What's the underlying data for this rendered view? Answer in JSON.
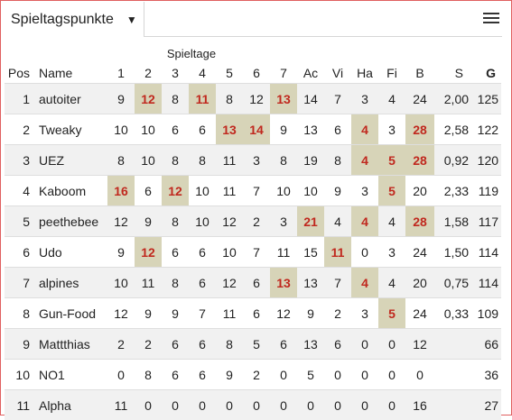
{
  "header": {
    "select_value": "Spieltagspunkte",
    "caret_icon": "caret-down-icon",
    "menu_icon": "hamburger-menu-icon"
  },
  "table": {
    "group_label": "Spieltage",
    "columns": [
      "Pos",
      "Name",
      "1",
      "2",
      "3",
      "4",
      "5",
      "6",
      "7",
      "Ac",
      "Vi",
      "Ha",
      "Fi",
      "B",
      "S",
      "G"
    ],
    "rows": [
      {
        "pos": "1",
        "name": "autoiter",
        "cells": [
          "9",
          "12",
          "8",
          "11",
          "8",
          "12",
          "13",
          "14",
          "7",
          "3",
          "4",
          "24",
          "2,00",
          "125"
        ],
        "highlight": [
          1,
          3,
          6
        ]
      },
      {
        "pos": "2",
        "name": "Tweaky",
        "cells": [
          "10",
          "10",
          "6",
          "6",
          "13",
          "14",
          "9",
          "13",
          "6",
          "4",
          "3",
          "28",
          "2,58",
          "122"
        ],
        "highlight": [
          4,
          5,
          9,
          11
        ]
      },
      {
        "pos": "3",
        "name": "UEZ",
        "cells": [
          "8",
          "10",
          "8",
          "8",
          "11",
          "3",
          "8",
          "19",
          "8",
          "4",
          "5",
          "28",
          "0,92",
          "120"
        ],
        "highlight": [
          9,
          10,
          11
        ]
      },
      {
        "pos": "4",
        "name": "Kaboom",
        "cells": [
          "16",
          "6",
          "12",
          "10",
          "11",
          "7",
          "10",
          "10",
          "9",
          "3",
          "5",
          "20",
          "2,33",
          "119"
        ],
        "highlight": [
          0,
          2,
          10
        ]
      },
      {
        "pos": "5",
        "name": "peethebee",
        "cells": [
          "12",
          "9",
          "8",
          "10",
          "12",
          "2",
          "3",
          "21",
          "4",
          "4",
          "4",
          "28",
          "1,58",
          "117"
        ],
        "highlight": [
          7,
          9,
          11
        ]
      },
      {
        "pos": "6",
        "name": "Udo",
        "cells": [
          "9",
          "12",
          "6",
          "6",
          "10",
          "7",
          "11",
          "15",
          "11",
          "0",
          "3",
          "24",
          "1,50",
          "114"
        ],
        "highlight": [
          1,
          8
        ]
      },
      {
        "pos": "7",
        "name": "alpines",
        "cells": [
          "10",
          "11",
          "8",
          "6",
          "12",
          "6",
          "13",
          "13",
          "7",
          "4",
          "4",
          "20",
          "0,75",
          "114"
        ],
        "highlight": [
          6,
          9
        ]
      },
      {
        "pos": "8",
        "name": "Gun-Food",
        "cells": [
          "12",
          "9",
          "9",
          "7",
          "11",
          "6",
          "12",
          "9",
          "2",
          "3",
          "5",
          "24",
          "0,33",
          "109"
        ],
        "highlight": [
          10
        ]
      },
      {
        "pos": "9",
        "name": "Mattthias",
        "cells": [
          "2",
          "2",
          "6",
          "6",
          "8",
          "5",
          "6",
          "13",
          "6",
          "0",
          "0",
          "12",
          "",
          "66"
        ],
        "highlight": []
      },
      {
        "pos": "10",
        "name": "NO1",
        "cells": [
          "0",
          "8",
          "6",
          "6",
          "9",
          "2",
          "0",
          "5",
          "0",
          "0",
          "0",
          "0",
          "",
          "36"
        ],
        "highlight": []
      },
      {
        "pos": "11",
        "name": "Alpha",
        "cells": [
          "11",
          "0",
          "0",
          "0",
          "0",
          "0",
          "0",
          "0",
          "0",
          "0",
          "0",
          "16",
          "",
          "27"
        ],
        "highlight": []
      }
    ]
  },
  "colors": {
    "highlight_bg": "#d7d4b8",
    "highlight_text": "#c0281e",
    "frame_border": "#e06060"
  }
}
